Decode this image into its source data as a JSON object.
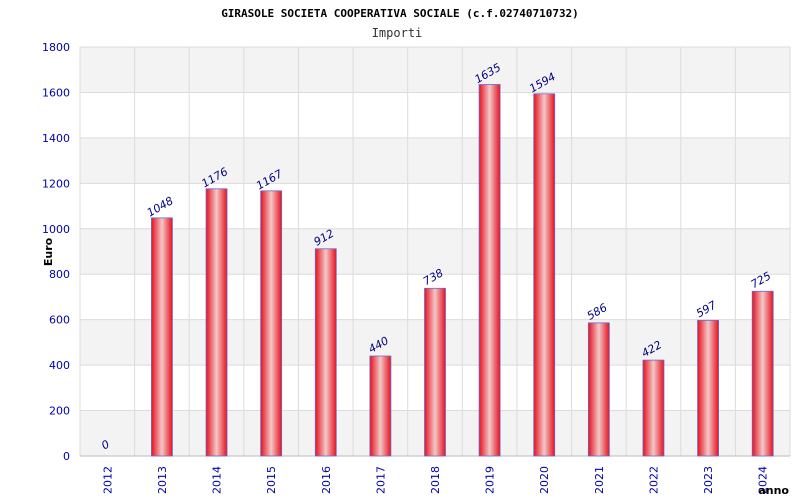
{
  "chart_data": {
    "type": "bar",
    "title": "GIRASOLE SOCIETA COOPERATIVA SOCIALE (c.f.02740710732)",
    "subtitle": "Importi",
    "xlabel": "anno",
    "ylabel": "Euro",
    "categories": [
      "2012",
      "2013",
      "2014",
      "2015",
      "2016",
      "2017",
      "2018",
      "2019",
      "2020",
      "2021",
      "2022",
      "2023",
      "2024"
    ],
    "values": [
      0,
      1048,
      1176,
      1167,
      912,
      440,
      738,
      1635,
      1594,
      586,
      422,
      597,
      725
    ],
    "ylim": [
      0,
      1800
    ],
    "yticks": [
      0,
      200,
      400,
      600,
      800,
      1000,
      1200,
      1400,
      1600,
      1800
    ],
    "grid": true,
    "legend": "none",
    "colors": {
      "bar_edge": "#e8101c",
      "bar_center": "#f2c8c8",
      "bar_outline": "#6a6ad0",
      "band": "#f3f3f3",
      "grid": "#dcdcdc",
      "tick_text": "#0000aa",
      "value_text": "#000080"
    }
  }
}
